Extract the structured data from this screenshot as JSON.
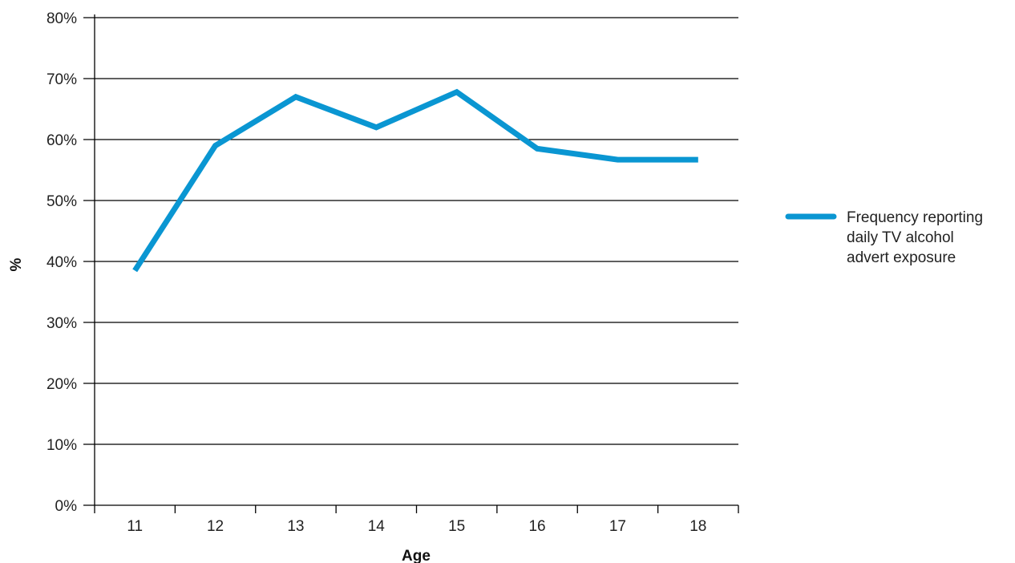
{
  "chart_data": {
    "type": "line",
    "xlabel": "Age",
    "ylabel": "%",
    "categories": [
      "11",
      "12",
      "13",
      "14",
      "15",
      "16",
      "17",
      "18"
    ],
    "ylim": [
      0,
      80
    ],
    "yticks": [
      0,
      10,
      20,
      30,
      40,
      50,
      60,
      70,
      80
    ],
    "ytick_labels": [
      "0%",
      "10%",
      "20%",
      "30%",
      "40%",
      "50%",
      "60%",
      "70%",
      "80%"
    ],
    "grid": true,
    "legend_position": "right",
    "series": [
      {
        "name": "Frequency reporting daily TV alcohol advert exposure",
        "name_lines": [
          "Frequency reporting",
          "daily TV alcohol",
          "advert exposure"
        ],
        "color": "#0a96d2",
        "values": [
          38.5,
          59,
          67,
          62,
          67.8,
          58.5,
          56.7,
          56.7
        ]
      }
    ]
  }
}
